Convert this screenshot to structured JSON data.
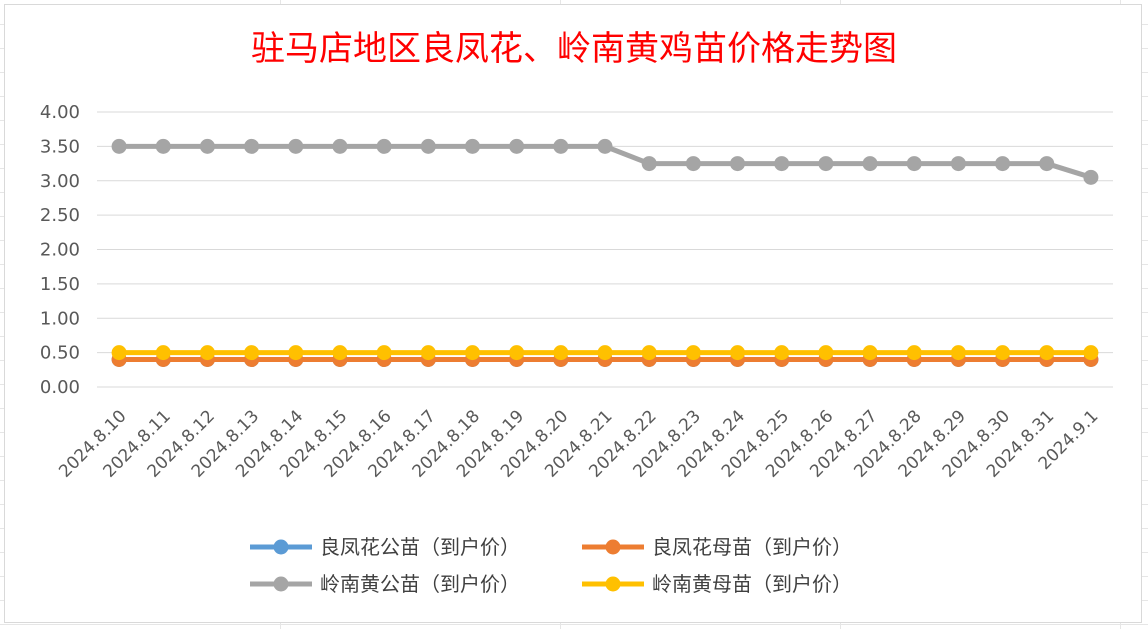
{
  "chart_data": {
    "type": "line",
    "title": "驻马店地区良凤花、岭南黄鸡苗价格走势图",
    "xlabel": "",
    "ylabel": "",
    "ylim": [
      0,
      4
    ],
    "ytick_step": 0.5,
    "ytick_labels": [
      "0.00",
      "0.50",
      "1.00",
      "1.50",
      "2.00",
      "2.50",
      "3.00",
      "3.50",
      "4.00"
    ],
    "grid": true,
    "legend_position": "bottom",
    "categories": [
      "2024.8.10",
      "2024.8.11",
      "2024.8.12",
      "2024.8.13",
      "2024.8.14",
      "2024.8.15",
      "2024.8.16",
      "2024.8.17",
      "2024.8.18",
      "2024.8.19",
      "2024.8.20",
      "2024.8.21",
      "2024.8.22",
      "2024.8.23",
      "2024.8.24",
      "2024.8.25",
      "2024.8.26",
      "2024.8.27",
      "2024.8.28",
      "2024.8.29",
      "2024.8.30",
      "2024.8.31",
      "2024.9.1"
    ],
    "series": [
      {
        "name": "良凤花公苗（到户价）",
        "color": "#5b9bd5",
        "values": [
          0.4,
          0.4,
          0.4,
          0.4,
          0.4,
          0.4,
          0.4,
          0.4,
          0.4,
          0.4,
          0.4,
          0.4,
          0.4,
          0.4,
          0.4,
          0.4,
          0.4,
          0.4,
          0.4,
          0.4,
          0.4,
          0.4,
          0.4
        ]
      },
      {
        "name": "良凤花母苗（到户价）",
        "color": "#ed7d31",
        "values": [
          0.4,
          0.4,
          0.4,
          0.4,
          0.4,
          0.4,
          0.4,
          0.4,
          0.4,
          0.4,
          0.4,
          0.4,
          0.4,
          0.4,
          0.4,
          0.4,
          0.4,
          0.4,
          0.4,
          0.4,
          0.4,
          0.4,
          0.4
        ]
      },
      {
        "name": "岭南黄公苗（到户价）",
        "color": "#a5a5a5",
        "values": [
          3.5,
          3.5,
          3.5,
          3.5,
          3.5,
          3.5,
          3.5,
          3.5,
          3.5,
          3.5,
          3.5,
          3.5,
          3.25,
          3.25,
          3.25,
          3.25,
          3.25,
          3.25,
          3.25,
          3.25,
          3.25,
          3.25,
          3.05
        ]
      },
      {
        "name": "岭南黄母苗（到户价）",
        "color": "#ffc000",
        "values": [
          0.5,
          0.5,
          0.5,
          0.5,
          0.5,
          0.5,
          0.5,
          0.5,
          0.5,
          0.5,
          0.5,
          0.5,
          0.5,
          0.5,
          0.5,
          0.5,
          0.5,
          0.5,
          0.5,
          0.5,
          0.5,
          0.5,
          0.5
        ]
      }
    ]
  }
}
